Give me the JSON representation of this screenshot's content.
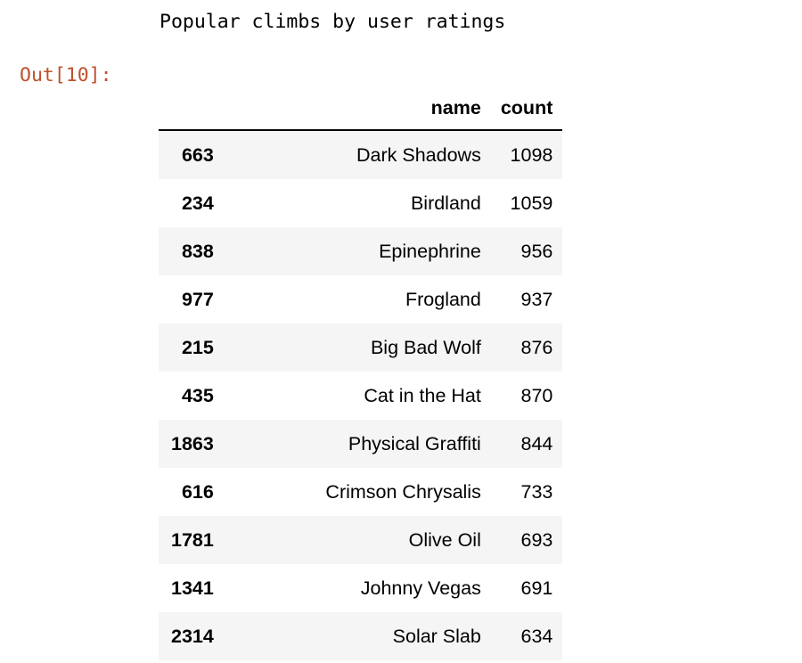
{
  "cell": {
    "stdout": "Popular climbs by user ratings",
    "prompt": "Out[10]:"
  },
  "table": {
    "columns": [
      "",
      "name",
      "count"
    ],
    "rows": [
      {
        "index": "663",
        "name": "Dark Shadows",
        "count": "1098"
      },
      {
        "index": "234",
        "name": "Birdland",
        "count": "1059"
      },
      {
        "index": "838",
        "name": "Epinephrine",
        "count": "956"
      },
      {
        "index": "977",
        "name": "Frogland",
        "count": "937"
      },
      {
        "index": "215",
        "name": "Big Bad Wolf",
        "count": "876"
      },
      {
        "index": "435",
        "name": "Cat in the Hat",
        "count": "870"
      },
      {
        "index": "1863",
        "name": "Physical Graffiti",
        "count": "844"
      },
      {
        "index": "616",
        "name": "Crimson Chrysalis",
        "count": "733"
      },
      {
        "index": "1781",
        "name": "Olive Oil",
        "count": "693"
      },
      {
        "index": "1341",
        "name": "Johnny Vegas",
        "count": "691"
      },
      {
        "index": "2314",
        "name": "Solar Slab",
        "count": "634"
      }
    ]
  },
  "colors": {
    "prompt": "#c0502d",
    "stripe": "#f5f5f5"
  }
}
